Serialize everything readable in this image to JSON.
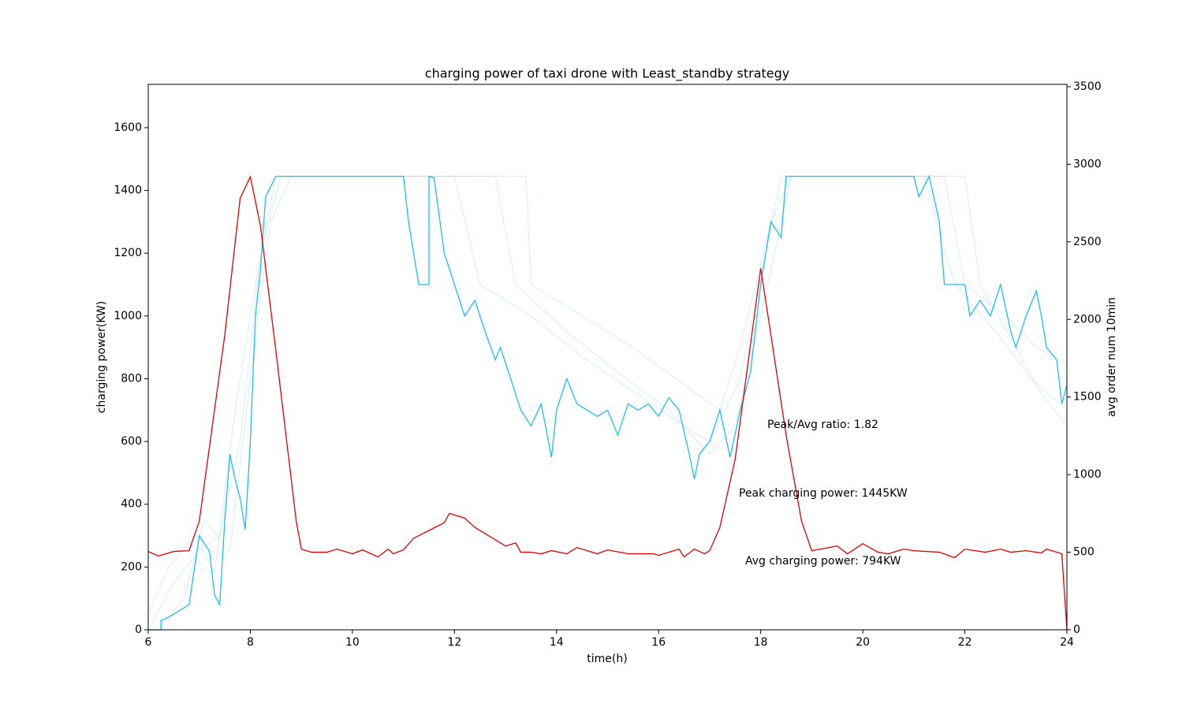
{
  "chart_data": {
    "type": "line",
    "title": "charging power of taxi drone with Least_standby strategy",
    "x_label": "time(h)",
    "y_label": "charging power(KW)",
    "y2_label": "avg order num 10min",
    "xlim": [
      6,
      24
    ],
    "xticks": [
      6,
      8,
      10,
      12,
      14,
      16,
      18,
      20,
      22,
      24
    ],
    "ylim": [
      0,
      1738
    ],
    "yticks": [
      0,
      200,
      400,
      600,
      800,
      1000,
      1200,
      1400,
      1600
    ],
    "y2lim": [
      0,
      3515
    ],
    "y2ticks": [
      0,
      500,
      1000,
      1500,
      2000,
      2500,
      3000,
      3500
    ],
    "annotations": [
      "Peak/Avg ratio: 1.82",
      "Peak charging power: 1445KW",
      "Avg charging power: 794KW"
    ],
    "series": [
      {
        "color": "#9fd8f7",
        "opacity": 0.45,
        "x": [
          6,
          6.5,
          7,
          7.4,
          7.8,
          8.2,
          8.6,
          12.5,
          13.4,
          13.5,
          14.5,
          15.5,
          16.5,
          17.2,
          17.6,
          18.2,
          18.6,
          21.6,
          22.0,
          22.8,
          23.4,
          24
        ],
        "values": [
          0,
          150,
          250,
          300,
          600,
          1200,
          1445,
          1445,
          1445,
          1100,
          1000,
          900,
          780,
          700,
          900,
          1300,
          1445,
          1445,
          1100,
          1000,
          900,
          850
        ]
      },
      {
        "color": "#9fd8f7",
        "opacity": 0.45,
        "x": [
          6,
          6.4,
          6.9,
          7.3,
          7.7,
          8.1,
          8.5,
          11.0,
          12.0,
          12.5,
          13.5,
          14.5,
          15.5,
          16.5,
          17.0,
          17.6,
          18.1,
          18.4,
          22.0,
          22.3,
          23.0,
          23.5,
          24
        ],
        "values": [
          50,
          200,
          300,
          180,
          700,
          1100,
          1445,
          1445,
          1445,
          1100,
          1000,
          870,
          760,
          650,
          600,
          800,
          1200,
          1445,
          1445,
          1100,
          900,
          750,
          650
        ]
      },
      {
        "color": "#9fd8f7",
        "opacity": 0.45,
        "x": [
          6.2,
          6.7,
          7.1,
          7.6,
          8.0,
          8.4,
          8.8,
          11.5,
          12.8,
          13.2,
          14.2,
          15.2,
          16.2,
          17.0,
          17.5,
          18.0,
          18.6,
          21.2,
          21.8,
          22.6,
          23.3,
          24
        ],
        "values": [
          0,
          100,
          350,
          250,
          800,
          1300,
          1445,
          1445,
          1445,
          1100,
          950,
          820,
          700,
          560,
          650,
          1000,
          1445,
          1445,
          1100,
          950,
          800,
          700
        ]
      },
      {
        "color": "#1cbdf0",
        "opacity": 1,
        "x": [
          6.0,
          6.25,
          6.25,
          6.4,
          6.6,
          6.8,
          7.0,
          7.2,
          7.3,
          7.4,
          7.5,
          7.6,
          7.7,
          7.8,
          7.9,
          8.0,
          8.1,
          8.2,
          8.3,
          8.5,
          11.0,
          11.1,
          11.3,
          11.5,
          11.5,
          11.6,
          11.8,
          12.0,
          12.2,
          12.4,
          12.6,
          12.8,
          12.9,
          13.1,
          13.3,
          13.5,
          13.7,
          13.9,
          14.0,
          14.2,
          14.4,
          14.6,
          14.8,
          15.0,
          15.2,
          15.4,
          15.6,
          15.8,
          16.0,
          16.2,
          16.4,
          16.6,
          16.7,
          16.8,
          17.0,
          17.2,
          17.4,
          17.6,
          17.8,
          18.0,
          18.2,
          18.4,
          18.5,
          21.0,
          21.1,
          21.3,
          21.5,
          21.6,
          22.0,
          22.1,
          22.3,
          22.5,
          22.7,
          22.9,
          23.0,
          23.2,
          23.4,
          23.5,
          23.6,
          23.8,
          23.9,
          24.0
        ],
        "values": [
          0,
          0,
          30,
          40,
          60,
          80,
          300,
          250,
          110,
          80,
          350,
          560,
          480,
          420,
          320,
          600,
          1000,
          1150,
          1380,
          1445,
          1445,
          1300,
          1100,
          1100,
          1445,
          1440,
          1200,
          1100,
          1000,
          1050,
          950,
          860,
          900,
          800,
          700,
          650,
          720,
          550,
          700,
          800,
          720,
          700,
          680,
          700,
          620,
          720,
          700,
          720,
          680,
          740,
          700,
          560,
          480,
          560,
          600,
          700,
          550,
          700,
          820,
          1100,
          1300,
          1250,
          1445,
          1445,
          1380,
          1445,
          1300,
          1100,
          1100,
          1000,
          1050,
          1000,
          1100,
          950,
          900,
          1000,
          1080,
          1000,
          900,
          860,
          720,
          780
        ]
      },
      {
        "color": "#e00000",
        "opacity": 1,
        "axis": "y2",
        "x": [
          6.0,
          6.2,
          6.5,
          6.8,
          7.0,
          7.5,
          7.8,
          8.0,
          8.2,
          8.5,
          8.9,
          9.0,
          9.2,
          9.5,
          9.7,
          10.0,
          10.2,
          10.5,
          10.7,
          10.8,
          11.0,
          11.2,
          11.5,
          11.8,
          11.9,
          12.2,
          12.4,
          12.8,
          13.0,
          13.2,
          13.3,
          13.5,
          13.7,
          13.9,
          14.2,
          14.4,
          14.8,
          15.0,
          15.4,
          15.9,
          16.0,
          16.4,
          16.5,
          16.7,
          16.9,
          17.0,
          17.2,
          17.5,
          18.0,
          18.2,
          18.5,
          18.8,
          19.0,
          19.5,
          19.7,
          20.0,
          20.3,
          20.5,
          20.8,
          21.0,
          21.5,
          21.8,
          22.0,
          22.4,
          22.7,
          22.9,
          23.2,
          23.5,
          23.6,
          23.9,
          24.0
        ],
        "values": [
          505,
          475,
          505,
          510,
          700,
          1900,
          2780,
          2920,
          2600,
          1800,
          700,
          520,
          500,
          500,
          520,
          490,
          515,
          470,
          520,
          490,
          515,
          590,
          640,
          690,
          750,
          720,
          660,
          580,
          540,
          560,
          500,
          500,
          490,
          510,
          490,
          530,
          490,
          515,
          490,
          490,
          480,
          520,
          470,
          520,
          490,
          510,
          660,
          1100,
          2330,
          1900,
          1250,
          700,
          510,
          540,
          490,
          555,
          500,
          490,
          520,
          510,
          500,
          465,
          520,
          500,
          520,
          500,
          510,
          495,
          520,
          490,
          0
        ]
      }
    ]
  }
}
